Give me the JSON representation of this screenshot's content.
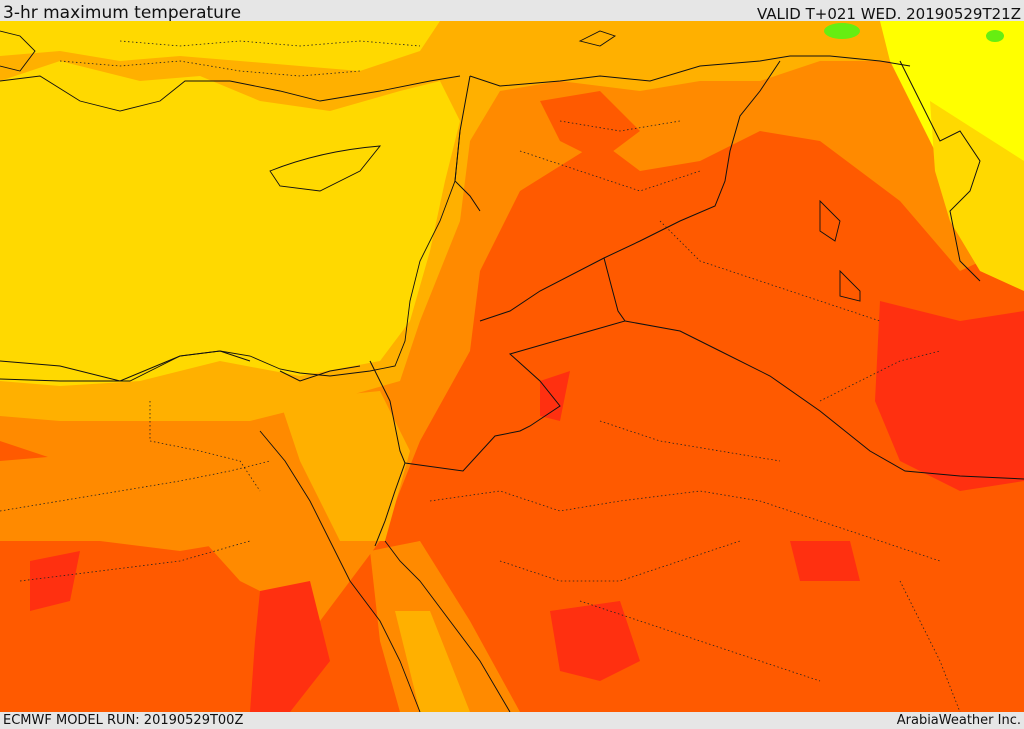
{
  "header": {
    "title": "3-hr maximum temperature",
    "valid_time": "VALID T+021 WED. 20190529T21Z"
  },
  "footer": {
    "model_run": "ECMWF MODEL RUN: 20190529T00Z",
    "brand": "ArabiaWeather Inc."
  },
  "map": {
    "region": "Eastern Mediterranean and Middle East",
    "colors": {
      "green": "#66EE11",
      "yellow": "#FFFF00",
      "gold": "#FFD900",
      "amber": "#FFB000",
      "orange": "#FF8A00",
      "dark_orange": "#FF5A00",
      "red": "#FF3010",
      "border": "#111111"
    }
  }
}
